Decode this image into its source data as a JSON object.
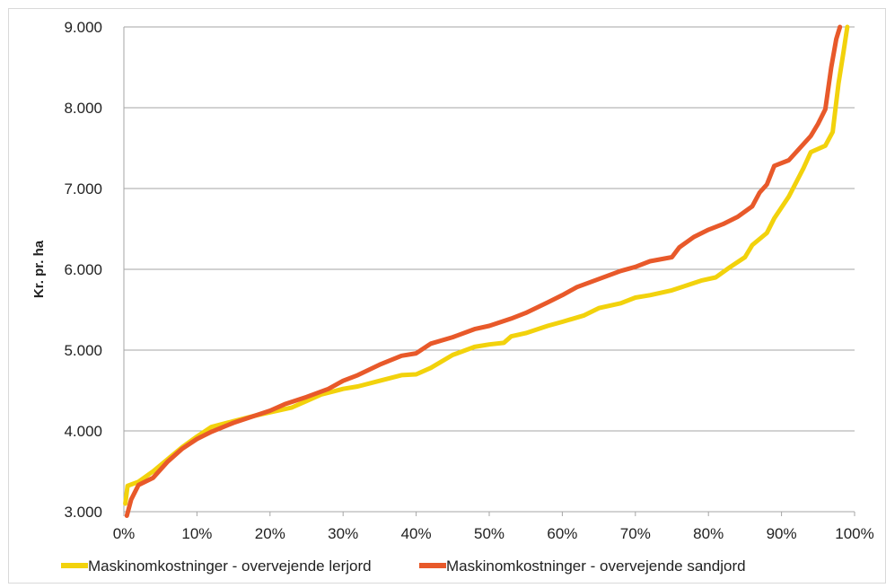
{
  "chart_data": {
    "type": "line",
    "title": "",
    "xlabel": "",
    "ylabel": "Kr. pr. ha",
    "xlim": [
      0,
      100
    ],
    "ylim": [
      3000,
      9000
    ],
    "x_ticks": [
      "0%",
      "10%",
      "20%",
      "30%",
      "40%",
      "50%",
      "60%",
      "70%",
      "80%",
      "90%",
      "100%"
    ],
    "y_ticks": [
      "3.000",
      "4.000",
      "5.000",
      "6.000",
      "7.000",
      "8.000",
      "9.000"
    ],
    "grid": "horizontal",
    "legend_position": "bottom",
    "series": [
      {
        "name": "Maskinomkostninger - overvejende lerjord",
        "color": "#f2d20c",
        "points": [
          [
            0.2,
            3100
          ],
          [
            0.5,
            3320
          ],
          [
            2,
            3370
          ],
          [
            4,
            3500
          ],
          [
            6,
            3650
          ],
          [
            8,
            3800
          ],
          [
            10,
            3930
          ],
          [
            12,
            4050
          ],
          [
            15,
            4120
          ],
          [
            18,
            4190
          ],
          [
            20,
            4230
          ],
          [
            23,
            4290
          ],
          [
            25,
            4370
          ],
          [
            27,
            4450
          ],
          [
            30,
            4520
          ],
          [
            32,
            4550
          ],
          [
            35,
            4620
          ],
          [
            38,
            4690
          ],
          [
            40,
            4700
          ],
          [
            42,
            4780
          ],
          [
            45,
            4940
          ],
          [
            48,
            5040
          ],
          [
            50,
            5070
          ],
          [
            52,
            5090
          ],
          [
            53,
            5170
          ],
          [
            55,
            5210
          ],
          [
            58,
            5300
          ],
          [
            60,
            5350
          ],
          [
            63,
            5430
          ],
          [
            65,
            5520
          ],
          [
            68,
            5580
          ],
          [
            70,
            5650
          ],
          [
            72,
            5680
          ],
          [
            75,
            5740
          ],
          [
            77,
            5800
          ],
          [
            79,
            5860
          ],
          [
            81,
            5900
          ],
          [
            83,
            6030
          ],
          [
            85,
            6150
          ],
          [
            86,
            6300
          ],
          [
            88,
            6450
          ],
          [
            89,
            6630
          ],
          [
            91,
            6900
          ],
          [
            93,
            7250
          ],
          [
            94,
            7450
          ],
          [
            96,
            7530
          ],
          [
            97,
            7700
          ],
          [
            97.8,
            8300
          ],
          [
            98.5,
            8700
          ],
          [
            99,
            9000
          ]
        ]
      },
      {
        "name": "Maskinomkostninger - overvejende sandjord",
        "color": "#e8592a",
        "points": [
          [
            0.4,
            2950
          ],
          [
            1,
            3150
          ],
          [
            2,
            3330
          ],
          [
            4,
            3420
          ],
          [
            6,
            3620
          ],
          [
            8,
            3780
          ],
          [
            10,
            3900
          ],
          [
            12,
            3990
          ],
          [
            15,
            4100
          ],
          [
            18,
            4190
          ],
          [
            20,
            4250
          ],
          [
            22,
            4330
          ],
          [
            25,
            4420
          ],
          [
            28,
            4520
          ],
          [
            30,
            4620
          ],
          [
            32,
            4690
          ],
          [
            35,
            4820
          ],
          [
            38,
            4930
          ],
          [
            40,
            4960
          ],
          [
            42,
            5080
          ],
          [
            45,
            5160
          ],
          [
            48,
            5260
          ],
          [
            50,
            5300
          ],
          [
            53,
            5390
          ],
          [
            55,
            5460
          ],
          [
            58,
            5590
          ],
          [
            60,
            5680
          ],
          [
            62,
            5780
          ],
          [
            65,
            5880
          ],
          [
            68,
            5980
          ],
          [
            70,
            6030
          ],
          [
            72,
            6100
          ],
          [
            75,
            6150
          ],
          [
            76,
            6270
          ],
          [
            78,
            6400
          ],
          [
            80,
            6490
          ],
          [
            82,
            6560
          ],
          [
            84,
            6650
          ],
          [
            86,
            6780
          ],
          [
            87,
            6950
          ],
          [
            88,
            7050
          ],
          [
            89,
            7280
          ],
          [
            91,
            7350
          ],
          [
            92,
            7450
          ],
          [
            94,
            7650
          ],
          [
            95,
            7800
          ],
          [
            96,
            7980
          ],
          [
            96.8,
            8500
          ],
          [
            97.5,
            8850
          ],
          [
            98,
            9000
          ]
        ]
      }
    ]
  }
}
